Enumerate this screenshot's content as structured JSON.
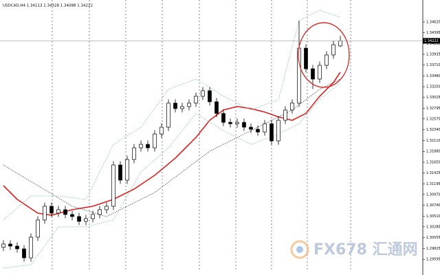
{
  "chart_data": {
    "type": "candlestick",
    "title": "USDCAD,H4  1.34113 1.34328 1.34088 1.34222",
    "xlim": [
      -0.5,
      61
    ],
    "ylim": [
      1.29336,
      1.35086
    ],
    "yticks": [
      {
        "value": 1.3462,
        "label": "1.34620"
      },
      {
        "value": 1.34395,
        "label": "1.34395"
      },
      {
        "value": 1.34165,
        "label": "1.34165"
      },
      {
        "value": 1.33935,
        "label": "1.33935"
      },
      {
        "value": 1.3371,
        "label": "1.33710"
      },
      {
        "value": 1.3348,
        "label": "1.33480"
      },
      {
        "value": 1.3325,
        "label": "1.33250"
      },
      {
        "value": 1.33025,
        "label": "1.33025"
      },
      {
        "value": 1.32795,
        "label": "1.32795"
      },
      {
        "value": 1.3257,
        "label": "1.32570"
      },
      {
        "value": 1.3234,
        "label": "1.32340"
      },
      {
        "value": 1.3211,
        "label": "1.32110"
      },
      {
        "value": 1.3188,
        "label": "1.31880"
      },
      {
        "value": 1.3165,
        "label": "1.31650"
      },
      {
        "value": 1.31425,
        "label": "1.31425"
      },
      {
        "value": 1.31195,
        "label": "1.31195"
      },
      {
        "value": 1.3097,
        "label": "1.30970"
      },
      {
        "value": 1.3074,
        "label": "1.30740"
      },
      {
        "value": 1.3051,
        "label": "1.30510"
      },
      {
        "value": 1.30285,
        "label": "1.30285"
      },
      {
        "value": 1.30055,
        "label": "1.30055"
      },
      {
        "value": 1.29825,
        "label": "1.29825"
      },
      {
        "value": 1.29595,
        "label": "1.29595"
      }
    ],
    "current_price": {
      "value": 1.34222,
      "label": "1.34222"
    },
    "candles": {
      "open": [
        1.2985,
        1.29919,
        1.29875,
        1.29817,
        1.29627,
        1.30064,
        1.30428,
        1.30719,
        1.30574,
        1.30646,
        1.30545,
        1.30501,
        1.30399,
        1.30457,
        1.30545,
        1.30646,
        1.30719,
        1.31593,
        1.31272,
        1.31709,
        1.31956,
        1.32029,
        1.31956,
        1.32248,
        1.32393,
        1.32903,
        1.32786,
        1.3283,
        1.32903,
        1.33048,
        1.33165,
        1.32932,
        1.32684,
        1.32495,
        1.32466,
        1.32495,
        1.32393,
        1.32349,
        1.32291,
        1.32466,
        1.32102,
        1.32539,
        1.32757,
        1.32903,
        1.34067,
        1.3363,
        1.33412,
        1.33703,
        1.33922,
        1.34113
      ],
      "high": [
        1.29999,
        1.29999,
        1.29955,
        1.29897,
        1.30144,
        1.30508,
        1.30799,
        1.30799,
        1.30726,
        1.30726,
        1.30625,
        1.30581,
        1.30537,
        1.30625,
        1.30726,
        1.30799,
        1.31673,
        1.31673,
        1.31789,
        1.32036,
        1.32109,
        1.32109,
        1.32328,
        1.32473,
        1.32983,
        1.32983,
        1.3291,
        1.32983,
        1.33128,
        1.33245,
        1.33245,
        1.33012,
        1.32764,
        1.32575,
        1.32575,
        1.32575,
        1.32473,
        1.32429,
        1.32546,
        1.32546,
        1.32619,
        1.32837,
        1.32983,
        1.34649,
        1.34147,
        1.3371,
        1.33783,
        1.34002,
        1.3422,
        1.34328
      ],
      "low": [
        1.2977,
        1.29795,
        1.29737,
        1.29547,
        1.29547,
        1.29984,
        1.30348,
        1.30494,
        1.30494,
        1.30465,
        1.30421,
        1.30319,
        1.30319,
        1.30377,
        1.30465,
        1.30566,
        1.30639,
        1.31192,
        1.31192,
        1.31629,
        1.31876,
        1.31876,
        1.31876,
        1.32168,
        1.32313,
        1.32706,
        1.32706,
        1.3275,
        1.32823,
        1.32968,
        1.32852,
        1.32604,
        1.32415,
        1.32386,
        1.32386,
        1.32313,
        1.32269,
        1.32211,
        1.32211,
        1.32022,
        1.32022,
        1.32459,
        1.32677,
        1.32823,
        1.3355,
        1.332,
        1.33332,
        1.33623,
        1.33842,
        1.34088
      ],
      "close": [
        1.29919,
        1.29875,
        1.29817,
        1.29627,
        1.30064,
        1.30428,
        1.30719,
        1.30574,
        1.30646,
        1.30545,
        1.30501,
        1.30399,
        1.30457,
        1.30545,
        1.30646,
        1.30719,
        1.31593,
        1.31272,
        1.31709,
        1.31956,
        1.32029,
        1.31956,
        1.32248,
        1.32393,
        1.32903,
        1.32786,
        1.3283,
        1.32903,
        1.33048,
        1.33165,
        1.32932,
        1.32684,
        1.32495,
        1.32466,
        1.32495,
        1.32393,
        1.32349,
        1.32291,
        1.32466,
        1.32102,
        1.32539,
        1.32757,
        1.32903,
        1.34067,
        1.3363,
        1.33412,
        1.33703,
        1.33922,
        1.3414,
        1.34222
      ]
    },
    "series": [
      {
        "color": "#e02020",
        "style": "solid",
        "x": [
          0,
          2,
          5,
          7,
          10,
          13,
          16,
          19,
          22,
          25,
          28,
          30,
          32,
          34,
          36,
          38,
          40,
          42,
          44,
          46,
          48,
          49
        ],
        "values": [
          1.31156,
          1.30865,
          1.30574,
          1.3053,
          1.30646,
          1.30719,
          1.30865,
          1.31083,
          1.31374,
          1.31738,
          1.32175,
          1.32539,
          1.32757,
          1.3283,
          1.32786,
          1.32713,
          1.32611,
          1.32539,
          1.32684,
          1.33048,
          1.33339,
          1.33558
        ]
      },
      {
        "color": "#333333",
        "style": "dotted",
        "x": [
          0,
          5,
          10,
          15,
          18,
          22,
          26,
          30,
          34,
          38,
          42,
          46,
          49
        ],
        "values": [
          1.31593,
          1.31156,
          1.30719,
          1.30501,
          1.30719,
          1.3101,
          1.31447,
          1.31884,
          1.32175,
          1.32466,
          1.32757,
          1.33194,
          1.33412
        ]
      },
      {
        "color": "#7fbf9f",
        "style": "dotted",
        "x": [
          0,
          4,
          8,
          12,
          16,
          20,
          24,
          28,
          32,
          36,
          40,
          43,
          46,
          49
        ],
        "values": [
          1.30428,
          1.30938,
          1.30938,
          1.30865,
          1.32029,
          1.32393,
          1.33194,
          1.33412,
          1.33048,
          1.32757,
          1.32975,
          1.34649,
          1.34868,
          1.34722
        ]
      },
      {
        "color": "#7fbf9f",
        "style": "dotted",
        "x": [
          0,
          4,
          8,
          12,
          16,
          20,
          24,
          28,
          32,
          36,
          40,
          43,
          46,
          49
        ],
        "values": [
          1.29409,
          1.29482,
          1.30283,
          1.30283,
          1.30428,
          1.31447,
          1.31956,
          1.32684,
          1.3232,
          1.32029,
          1.32248,
          1.32466,
          1.32975,
          1.33339
        ]
      }
    ],
    "watermark": "FX678 汇通网"
  }
}
